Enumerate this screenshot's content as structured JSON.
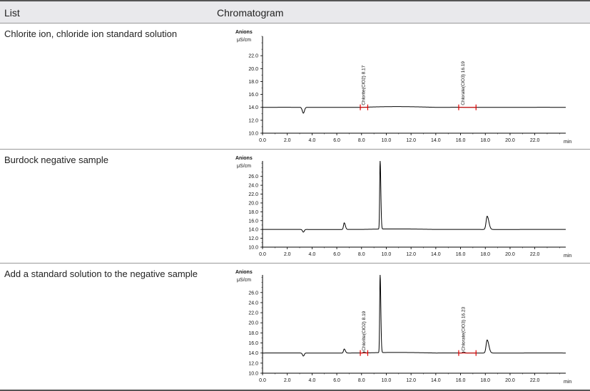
{
  "table": {
    "headers": {
      "list": "List",
      "chromatogram": "Chromatogram"
    }
  },
  "rows": [
    {
      "label": "Chlorite ion, chloride ion standard solution"
    },
    {
      "label": "Burdock negative sample"
    },
    {
      "label": "Add a standard solution to the negative sample"
    }
  ],
  "chart_data": [
    {
      "type": "line",
      "top_label": "Anions",
      "ylabel": "μS/cm",
      "xlabel": "min",
      "ylim": [
        10.0,
        25.0
      ],
      "xlim": [
        0.0,
        24.5
      ],
      "y_ticks": [
        10.0,
        12.0,
        14.0,
        16.0,
        18.0,
        20.0,
        22.0
      ],
      "x_ticks": [
        0.0,
        2.0,
        4.0,
        6.0,
        8.0,
        10.0,
        12.0,
        14.0,
        16.0,
        18.0,
        20.0,
        22.0
      ],
      "baseline": 14.0,
      "dips": [
        {
          "x": 3.3,
          "depth": 0.9,
          "width": 0.12
        }
      ],
      "peaks": [],
      "annotations": [
        {
          "text": "Chlorite(ClO2) 8.17",
          "x": 8.17,
          "start": 7.9,
          "end": 8.5
        },
        {
          "text": "Chlorate(ClO3) 16.19",
          "x": 16.19,
          "start": 15.85,
          "end": 17.25
        }
      ],
      "color": "#000000",
      "marker_color": "#e00000"
    },
    {
      "type": "line",
      "top_label": "Anions",
      "ylabel": "μS/cm",
      "xlabel": "min",
      "ylim": [
        10.0,
        29.5
      ],
      "xlim": [
        0.0,
        24.5
      ],
      "y_ticks": [
        10.0,
        12.0,
        14.0,
        16.0,
        18.0,
        20.0,
        22.0,
        24.0,
        26.0
      ],
      "x_ticks": [
        0.0,
        2.0,
        4.0,
        6.0,
        8.0,
        10.0,
        12.0,
        14.0,
        16.0,
        18.0,
        20.0,
        22.0
      ],
      "baseline": 14.0,
      "dips": [
        {
          "x": 3.3,
          "depth": 0.6,
          "width": 0.1
        }
      ],
      "peaks": [
        {
          "x": 6.6,
          "height": 1.5,
          "width": 0.08
        },
        {
          "x": 9.5,
          "height": 15.5,
          "width": 0.05
        },
        {
          "x": 18.15,
          "height": 3.0,
          "width": 0.12
        }
      ],
      "annotations": [],
      "color": "#000000",
      "marker_color": "#e00000"
    },
    {
      "type": "line",
      "top_label": "Anions",
      "ylabel": "μS/cm",
      "xlabel": "min",
      "ylim": [
        10.0,
        29.5
      ],
      "xlim": [
        0.0,
        24.5
      ],
      "y_ticks": [
        10.0,
        12.0,
        14.0,
        16.0,
        18.0,
        20.0,
        22.0,
        24.0,
        26.0
      ],
      "x_ticks": [
        0.0,
        2.0,
        4.0,
        6.0,
        8.0,
        10.0,
        12.0,
        14.0,
        16.0,
        18.0,
        20.0,
        22.0
      ],
      "baseline": 14.0,
      "dips": [
        {
          "x": 3.3,
          "depth": 0.6,
          "width": 0.1
        }
      ],
      "peaks": [
        {
          "x": 6.6,
          "height": 0.8,
          "width": 0.08
        },
        {
          "x": 8.19,
          "height": 0.2,
          "width": 0.08
        },
        {
          "x": 9.5,
          "height": 15.5,
          "width": 0.05
        },
        {
          "x": 16.23,
          "height": 0.2,
          "width": 0.1
        },
        {
          "x": 18.15,
          "height": 2.6,
          "width": 0.12
        }
      ],
      "annotations": [
        {
          "text": "Chlorite(ClO2) 8.19",
          "x": 8.19,
          "start": 7.9,
          "end": 8.5
        },
        {
          "text": "Chlorate(ClO3) 16.23",
          "x": 16.23,
          "start": 15.85,
          "end": 17.25
        }
      ],
      "color": "#000000",
      "marker_color": "#e00000"
    }
  ]
}
